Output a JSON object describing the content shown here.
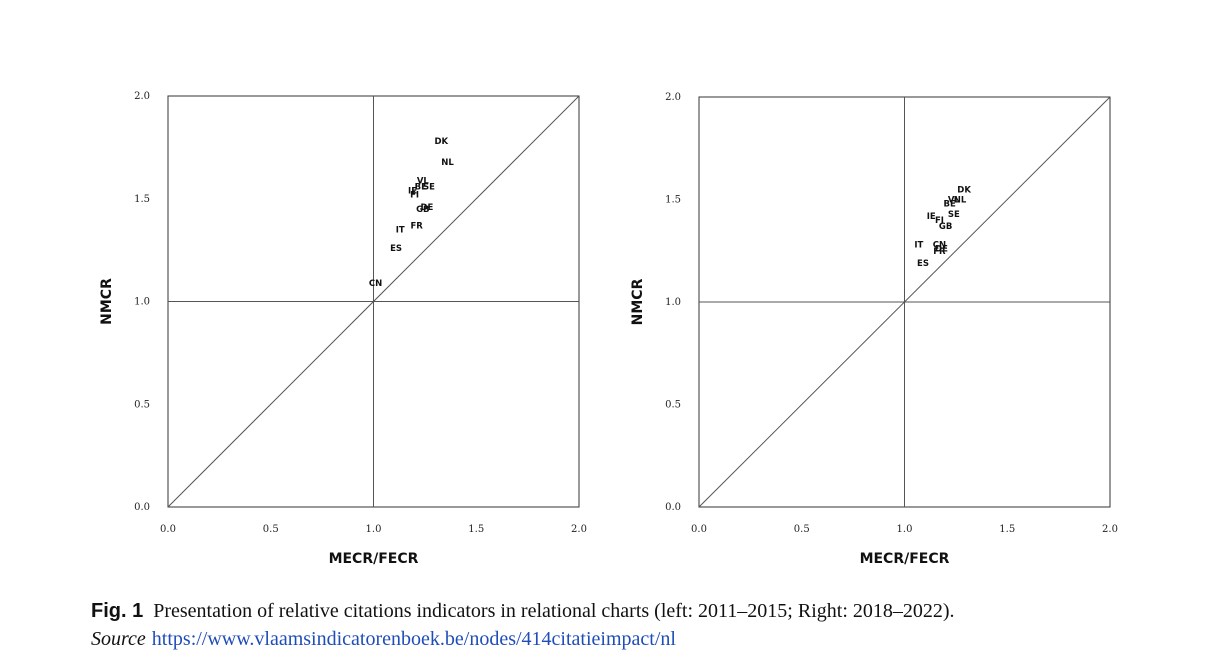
{
  "chart_data": [
    {
      "type": "scatter",
      "xlabel": "MECR/FECR",
      "ylabel": "NMCR",
      "xlim": [
        0,
        2
      ],
      "ylim": [
        0,
        2
      ],
      "xticks": [
        "0.0",
        "0.5",
        "1.0",
        "1.5",
        "2.0"
      ],
      "yticks": [
        "0.0",
        "0.5",
        "1.0",
        "1.5",
        "2.0"
      ],
      "reference_lines": [
        "x=1",
        "y=1",
        "y=x"
      ],
      "grid": false,
      "points": [
        {
          "label": "DK",
          "x": 1.33,
          "y": 1.78
        },
        {
          "label": "NL",
          "x": 1.36,
          "y": 1.68
        },
        {
          "label": "VL",
          "x": 1.24,
          "y": 1.59
        },
        {
          "label": "BE",
          "x": 1.23,
          "y": 1.56
        },
        {
          "label": "SE",
          "x": 1.27,
          "y": 1.56
        },
        {
          "label": "IE",
          "x": 1.19,
          "y": 1.54
        },
        {
          "label": "FI",
          "x": 1.2,
          "y": 1.52
        },
        {
          "label": "DE",
          "x": 1.26,
          "y": 1.46
        },
        {
          "label": "GB",
          "x": 1.24,
          "y": 1.45
        },
        {
          "label": "FR",
          "x": 1.21,
          "y": 1.37
        },
        {
          "label": "IT",
          "x": 1.13,
          "y": 1.35
        },
        {
          "label": "ES",
          "x": 1.11,
          "y": 1.26
        },
        {
          "label": "CN",
          "x": 1.01,
          "y": 1.09
        }
      ]
    },
    {
      "type": "scatter",
      "xlabel": "MECR/FECR",
      "ylabel": "NMCR",
      "xlim": [
        0,
        2
      ],
      "ylim": [
        0,
        2
      ],
      "xticks": [
        "0.0",
        "0.5",
        "1.0",
        "1.5",
        "2.0"
      ],
      "yticks": [
        "0.0",
        "0.5",
        "1.0",
        "1.5",
        "2.0"
      ],
      "reference_lines": [
        "x=1",
        "y=1",
        "y=x"
      ],
      "grid": false,
      "points": [
        {
          "label": "DK",
          "x": 1.29,
          "y": 1.55
        },
        {
          "label": "VL",
          "x": 1.24,
          "y": 1.5
        },
        {
          "label": "NL",
          "x": 1.27,
          "y": 1.5
        },
        {
          "label": "BE",
          "x": 1.22,
          "y": 1.48
        },
        {
          "label": "SE",
          "x": 1.24,
          "y": 1.43
        },
        {
          "label": "IE",
          "x": 1.13,
          "y": 1.42
        },
        {
          "label": "FI",
          "x": 1.17,
          "y": 1.4
        },
        {
          "label": "GB",
          "x": 1.2,
          "y": 1.37
        },
        {
          "label": "IT",
          "x": 1.07,
          "y": 1.28
        },
        {
          "label": "CN",
          "x": 1.17,
          "y": 1.28
        },
        {
          "label": "DE",
          "x": 1.18,
          "y": 1.26
        },
        {
          "label": "FR",
          "x": 1.17,
          "y": 1.25
        },
        {
          "label": "ES",
          "x": 1.09,
          "y": 1.19
        }
      ]
    }
  ],
  "caption": {
    "fig_label": "Fig. 1",
    "text": "Presentation of relative citations indicators in relational charts (left: 2011–2015; Right: 2018–2022).",
    "source_label": "Source",
    "source_url": "https://www.vlaamsindicatorenboek.be/nodes/414citatieimpact/nl"
  }
}
